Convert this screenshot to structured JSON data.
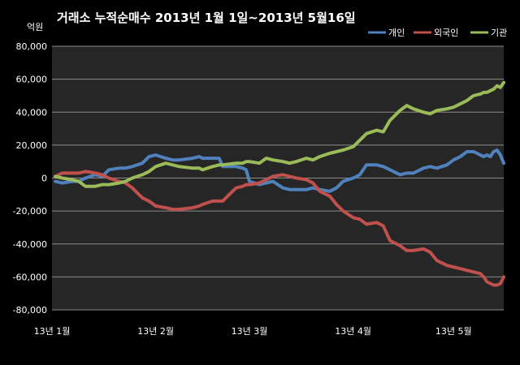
{
  "chart_data": {
    "type": "line",
    "title": "거래소  누적순매수 2013년 1월 1일~2013년 5월16일",
    "ylabel": "억원",
    "ylim": [
      -80000,
      80000
    ],
    "yticks": [
      "80,000",
      "60,000",
      "40,000",
      "20,000",
      "0",
      "-20,000",
      "-40,000",
      "-60,000",
      "-80,000"
    ],
    "xlim": [
      "2013-01-01",
      "2013-05-16"
    ],
    "xticks": [
      {
        "date": "2013-01-01",
        "label": "13년 1월"
      },
      {
        "date": "2013-02-01",
        "label": "13년 2월"
      },
      {
        "date": "2013-03-01",
        "label": "13년 3월"
      },
      {
        "date": "2013-04-01",
        "label": "13년 4월"
      },
      {
        "date": "2013-05-01",
        "label": "13년 5월"
      }
    ],
    "grid": true,
    "legend_position": "top-right",
    "series": [
      {
        "name": "개인",
        "color": "#4f81bd",
        "points": [
          [
            "2013-01-02",
            -2000
          ],
          [
            "2013-01-04",
            -3000
          ],
          [
            "2013-01-07",
            -2000
          ],
          [
            "2013-01-09",
            -2000
          ],
          [
            "2013-01-11",
            0
          ],
          [
            "2013-01-14",
            2000
          ],
          [
            "2013-01-16",
            1000
          ],
          [
            "2013-01-18",
            5000
          ],
          [
            "2013-01-21",
            6000
          ],
          [
            "2013-01-23",
            6000
          ],
          [
            "2013-01-25",
            7000
          ],
          [
            "2013-01-28",
            9000
          ],
          [
            "2013-01-30",
            13000
          ],
          [
            "2013-02-01",
            14000
          ],
          [
            "2013-02-04",
            12000
          ],
          [
            "2013-02-06",
            11000
          ],
          [
            "2013-02-08",
            11000
          ],
          [
            "2013-02-12",
            12000
          ],
          [
            "2013-02-14",
            13000
          ],
          [
            "2013-02-15",
            12000
          ],
          [
            "2013-02-18",
            12000
          ],
          [
            "2013-02-20",
            12000
          ],
          [
            "2013-02-21",
            7000
          ],
          [
            "2013-02-25",
            7000
          ],
          [
            "2013-02-27",
            6000
          ],
          [
            "2013-02-28",
            5000
          ],
          [
            "2013-03-01",
            -2000
          ],
          [
            "2013-03-04",
            -4000
          ],
          [
            "2013-03-06",
            -3000
          ],
          [
            "2013-03-08",
            -2000
          ],
          [
            "2013-03-11",
            -6000
          ],
          [
            "2013-03-13",
            -7000
          ],
          [
            "2013-03-15",
            -7000
          ],
          [
            "2013-03-18",
            -7000
          ],
          [
            "2013-03-20",
            -6000
          ],
          [
            "2013-03-22",
            -7000
          ],
          [
            "2013-03-25",
            -8000
          ],
          [
            "2013-03-27",
            -6000
          ],
          [
            "2013-03-29",
            -2000
          ],
          [
            "2013-04-01",
            0
          ],
          [
            "2013-04-03",
            2000
          ],
          [
            "2013-04-05",
            8000
          ],
          [
            "2013-04-08",
            8000
          ],
          [
            "2013-04-10",
            7000
          ],
          [
            "2013-04-12",
            5000
          ],
          [
            "2013-04-15",
            2000
          ],
          [
            "2013-04-17",
            3000
          ],
          [
            "2013-04-19",
            3000
          ],
          [
            "2013-04-22",
            6000
          ],
          [
            "2013-04-24",
            7000
          ],
          [
            "2013-04-26",
            6000
          ],
          [
            "2013-04-29",
            8000
          ],
          [
            "2013-05-01",
            11000
          ],
          [
            "2013-05-03",
            13000
          ],
          [
            "2013-05-05",
            16000
          ],
          [
            "2013-05-07",
            16000
          ],
          [
            "2013-05-09",
            14000
          ],
          [
            "2013-05-10",
            13000
          ],
          [
            "2013-05-11",
            14000
          ],
          [
            "2013-05-12",
            13000
          ],
          [
            "2013-05-13",
            16000
          ],
          [
            "2013-05-14",
            17000
          ],
          [
            "2013-05-15",
            14000
          ],
          [
            "2013-05-16",
            9000
          ]
        ]
      },
      {
        "name": "외국인",
        "color": "#c0504d",
        "points": [
          [
            "2013-01-02",
            1000
          ],
          [
            "2013-01-04",
            3000
          ],
          [
            "2013-01-07",
            3000
          ],
          [
            "2013-01-09",
            3000
          ],
          [
            "2013-01-11",
            4000
          ],
          [
            "2013-01-14",
            3000
          ],
          [
            "2013-01-16",
            2000
          ],
          [
            "2013-01-18",
            0
          ],
          [
            "2013-01-21",
            -2000
          ],
          [
            "2013-01-23",
            -3000
          ],
          [
            "2013-01-25",
            -6000
          ],
          [
            "2013-01-28",
            -12000
          ],
          [
            "2013-01-30",
            -14000
          ],
          [
            "2013-02-01",
            -17000
          ],
          [
            "2013-02-04",
            -18000
          ],
          [
            "2013-02-06",
            -19000
          ],
          [
            "2013-02-08",
            -19000
          ],
          [
            "2013-02-12",
            -18000
          ],
          [
            "2013-02-14",
            -17000
          ],
          [
            "2013-02-15",
            -16000
          ],
          [
            "2013-02-18",
            -14000
          ],
          [
            "2013-02-20",
            -14000
          ],
          [
            "2013-02-21",
            -14000
          ],
          [
            "2013-02-25",
            -6000
          ],
          [
            "2013-02-27",
            -5000
          ],
          [
            "2013-02-28",
            -4000
          ],
          [
            "2013-03-01",
            -4000
          ],
          [
            "2013-03-04",
            -3000
          ],
          [
            "2013-03-06",
            -1000
          ],
          [
            "2013-03-08",
            1000
          ],
          [
            "2013-03-11",
            2000
          ],
          [
            "2013-03-13",
            1000
          ],
          [
            "2013-03-15",
            0
          ],
          [
            "2013-03-18",
            -1000
          ],
          [
            "2013-03-20",
            -3000
          ],
          [
            "2013-03-22",
            -8000
          ],
          [
            "2013-03-25",
            -11000
          ],
          [
            "2013-03-27",
            -16000
          ],
          [
            "2013-03-29",
            -20000
          ],
          [
            "2013-04-01",
            -24000
          ],
          [
            "2013-04-03",
            -25000
          ],
          [
            "2013-04-05",
            -28000
          ],
          [
            "2013-04-08",
            -27000
          ],
          [
            "2013-04-10",
            -29000
          ],
          [
            "2013-04-12",
            -38000
          ],
          [
            "2013-04-15",
            -41000
          ],
          [
            "2013-04-17",
            -44000
          ],
          [
            "2013-04-19",
            -44000
          ],
          [
            "2013-04-22",
            -43000
          ],
          [
            "2013-04-24",
            -45000
          ],
          [
            "2013-04-26",
            -50000
          ],
          [
            "2013-04-29",
            -53000
          ],
          [
            "2013-05-01",
            -54000
          ],
          [
            "2013-05-03",
            -55000
          ],
          [
            "2013-05-05",
            -56000
          ],
          [
            "2013-05-07",
            -57000
          ],
          [
            "2013-05-09",
            -58000
          ],
          [
            "2013-05-10",
            -60000
          ],
          [
            "2013-05-11",
            -63000
          ],
          [
            "2013-05-12",
            -64000
          ],
          [
            "2013-05-13",
            -65000
          ],
          [
            "2013-05-14",
            -65000
          ],
          [
            "2013-05-15",
            -64000
          ],
          [
            "2013-05-16",
            -60000
          ]
        ]
      },
      {
        "name": "기관",
        "color": "#9bbb59",
        "points": [
          [
            "2013-01-02",
            1000
          ],
          [
            "2013-01-04",
            0
          ],
          [
            "2013-01-07",
            -1000
          ],
          [
            "2013-01-09",
            -2000
          ],
          [
            "2013-01-11",
            -5000
          ],
          [
            "2013-01-14",
            -5000
          ],
          [
            "2013-01-16",
            -4000
          ],
          [
            "2013-01-18",
            -4000
          ],
          [
            "2013-01-21",
            -3000
          ],
          [
            "2013-01-23",
            -2000
          ],
          [
            "2013-01-25",
            0
          ],
          [
            "2013-01-28",
            2000
          ],
          [
            "2013-01-30",
            4000
          ],
          [
            "2013-02-01",
            7000
          ],
          [
            "2013-02-04",
            9000
          ],
          [
            "2013-02-06",
            8000
          ],
          [
            "2013-02-08",
            7000
          ],
          [
            "2013-02-12",
            6000
          ],
          [
            "2013-02-14",
            6000
          ],
          [
            "2013-02-15",
            5000
          ],
          [
            "2013-02-18",
            7000
          ],
          [
            "2013-02-20",
            8000
          ],
          [
            "2013-02-21",
            8000
          ],
          [
            "2013-02-25",
            9000
          ],
          [
            "2013-02-27",
            9000
          ],
          [
            "2013-02-28",
            10000
          ],
          [
            "2013-03-01",
            10000
          ],
          [
            "2013-03-04",
            9000
          ],
          [
            "2013-03-06",
            12000
          ],
          [
            "2013-03-08",
            11000
          ],
          [
            "2013-03-11",
            10000
          ],
          [
            "2013-03-13",
            9000
          ],
          [
            "2013-03-15",
            10000
          ],
          [
            "2013-03-18",
            12000
          ],
          [
            "2013-03-20",
            11000
          ],
          [
            "2013-03-22",
            13000
          ],
          [
            "2013-03-25",
            15000
          ],
          [
            "2013-03-27",
            16000
          ],
          [
            "2013-03-29",
            17000
          ],
          [
            "2013-04-01",
            19000
          ],
          [
            "2013-04-03",
            23000
          ],
          [
            "2013-04-05",
            27000
          ],
          [
            "2013-04-08",
            29000
          ],
          [
            "2013-04-10",
            28000
          ],
          [
            "2013-04-12",
            35000
          ],
          [
            "2013-04-15",
            41000
          ],
          [
            "2013-04-17",
            44000
          ],
          [
            "2013-04-19",
            42000
          ],
          [
            "2013-04-22",
            40000
          ],
          [
            "2013-04-24",
            39000
          ],
          [
            "2013-04-26",
            41000
          ],
          [
            "2013-04-29",
            42000
          ],
          [
            "2013-05-01",
            43000
          ],
          [
            "2013-05-03",
            45000
          ],
          [
            "2013-05-05",
            47000
          ],
          [
            "2013-05-07",
            50000
          ],
          [
            "2013-05-09",
            51000
          ],
          [
            "2013-05-10",
            52000
          ],
          [
            "2013-05-11",
            52000
          ],
          [
            "2013-05-12",
            53000
          ],
          [
            "2013-05-13",
            54000
          ],
          [
            "2013-05-14",
            56000
          ],
          [
            "2013-05-15",
            55000
          ],
          [
            "2013-05-16",
            58000
          ]
        ]
      }
    ]
  }
}
